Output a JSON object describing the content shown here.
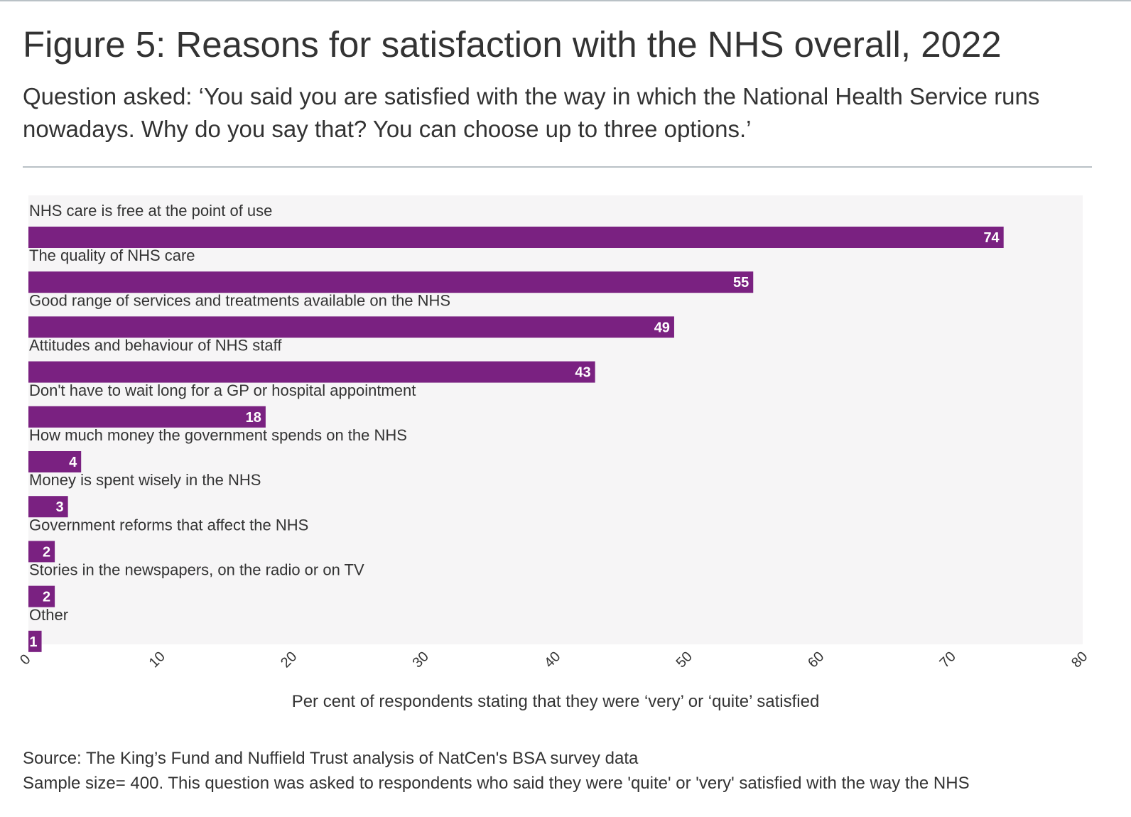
{
  "title": "Figure 5: Reasons for satisfaction with the NHS overall, 2022",
  "subtitle": "Question asked: ‘You said you are satisfied with the way in which the National Health Service runs nowadays. Why do you say that? You can choose up to three options.’",
  "colors": {
    "bar": "#7a2181",
    "plot_bg": "#f6f5f6",
    "text": "#333333",
    "rule": "#b9c1c6"
  },
  "chart_data": {
    "type": "bar",
    "orientation": "horizontal",
    "categories": [
      "NHS care is free at the point of use",
      "The quality of NHS care",
      "Good range of services and treatments available on the NHS",
      "Attitudes and behaviour of NHS staff",
      "Don't have to wait long for a GP or hospital appointment",
      "How much money the government spends on the NHS",
      "Money is spent wisely in the NHS",
      "Government reforms that affect the NHS",
      "Stories in the newspapers, on the radio or on TV",
      "Other"
    ],
    "values": [
      74,
      55,
      49,
      43,
      18,
      4,
      3,
      2,
      2,
      1
    ],
    "xlim": [
      0,
      80
    ],
    "xticks": [
      "0",
      "10",
      "20",
      "30",
      "40",
      "50",
      "60",
      "70",
      "80"
    ],
    "xlabel": "Per cent of respondents stating that they were ‘very’ or ‘quite’ satisfied",
    "ylabel": "",
    "data_labels": true
  },
  "footer": {
    "source": "Source: The King’s Fund and Nuffield Trust analysis of NatCen's BSA survey data",
    "note": "Sample size= 400. This question was asked to respondents who said they were 'quite' or 'very' satisfied with the way the NHS"
  }
}
